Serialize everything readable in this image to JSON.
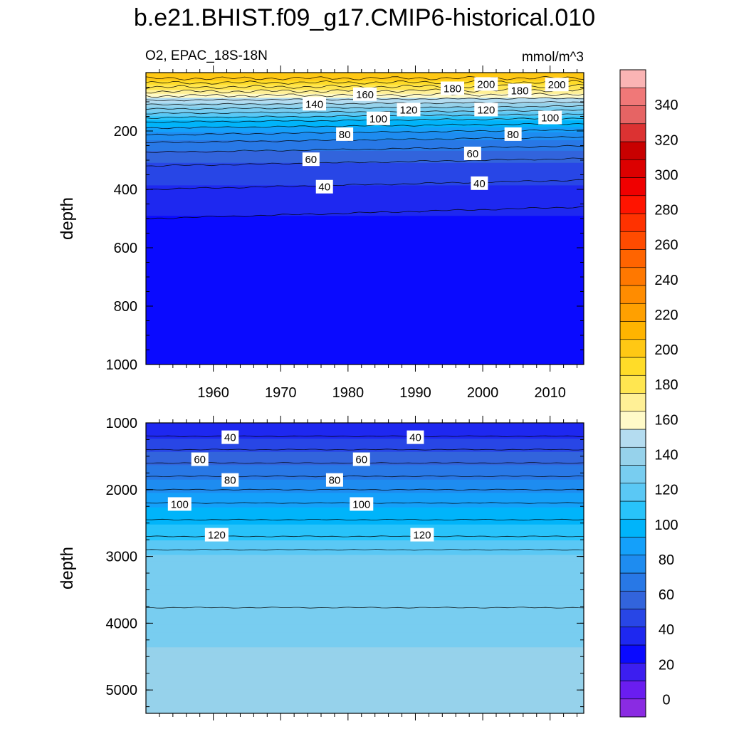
{
  "title": "b.e21.BHIST.f09_g17.CMIP6-historical.010",
  "variable_label": "O2, EPAC_18S-18N",
  "units_label": "mmol/m^3",
  "chart_data": [
    {
      "type": "heatmap",
      "panel": "upper",
      "ylabel": "depth",
      "y_reversed": true,
      "ylim": [
        0,
        1000
      ],
      "xlim": [
        1950,
        2015
      ],
      "x_ticks": [
        1960,
        1970,
        1980,
        1990,
        2000,
        2010
      ],
      "y_ticks": [
        200,
        400,
        600,
        800,
        1000
      ],
      "grid": false,
      "contour_levels": [
        0,
        10,
        20,
        30,
        40,
        50,
        60,
        70,
        80,
        90,
        100,
        110,
        120,
        130,
        140,
        150,
        160,
        170,
        180,
        190,
        200,
        210
      ],
      "contour_labels": [
        {
          "text": "200",
          "x": 2000.5,
          "y": 40
        },
        {
          "text": "200",
          "x": 2011,
          "y": 42
        },
        {
          "text": "180",
          "x": 1995.5,
          "y": 55
        },
        {
          "text": "180",
          "x": 2005.5,
          "y": 62
        },
        {
          "text": "160",
          "x": 1982.5,
          "y": 75
        },
        {
          "text": "140",
          "x": 1975,
          "y": 108
        },
        {
          "text": "120",
          "x": 1989,
          "y": 128
        },
        {
          "text": "120",
          "x": 2000.5,
          "y": 128
        },
        {
          "text": "100",
          "x": 1984.5,
          "y": 158
        },
        {
          "text": "100",
          "x": 2010,
          "y": 155
        },
        {
          "text": "80",
          "x": 1979.5,
          "y": 212
        },
        {
          "text": "80",
          "x": 2004.5,
          "y": 212
        },
        {
          "text": "60",
          "x": 1974.5,
          "y": 298
        },
        {
          "text": "60",
          "x": 1998.5,
          "y": 278
        },
        {
          "text": "40",
          "x": 1976.5,
          "y": 392
        },
        {
          "text": "40",
          "x": 1999.5,
          "y": 380
        }
      ],
      "profile": {
        "depth": [
          0,
          20,
          50,
          80,
          110,
          140,
          170,
          200,
          240,
          290,
          350,
          420,
          500,
          1000
        ],
        "o2": [
          205,
          200,
          180,
          160,
          140,
          120,
          100,
          85,
          70,
          55,
          45,
          38,
          30,
          22
        ]
      }
    },
    {
      "type": "heatmap",
      "panel": "lower",
      "ylabel": "depth",
      "y_reversed": true,
      "ylim": [
        1000,
        5350
      ],
      "xlim": [
        1950,
        2015
      ],
      "y_ticks": [
        1000,
        2000,
        3000,
        4000,
        5000
      ],
      "grid": false,
      "contour_levels": [
        30,
        40,
        50,
        60,
        70,
        80,
        90,
        100,
        110,
        120,
        130
      ],
      "contour_labels": [
        {
          "text": "40",
          "x": 1962.5,
          "y": 1220
        },
        {
          "text": "40",
          "x": 1990,
          "y": 1220
        },
        {
          "text": "60",
          "x": 1958,
          "y": 1550
        },
        {
          "text": "60",
          "x": 1982,
          "y": 1550
        },
        {
          "text": "80",
          "x": 1962.5,
          "y": 1860
        },
        {
          "text": "80",
          "x": 1978,
          "y": 1860
        },
        {
          "text": "100",
          "x": 1955,
          "y": 2220
        },
        {
          "text": "100",
          "x": 1982,
          "y": 2220
        },
        {
          "text": "120",
          "x": 1960.5,
          "y": 2680
        },
        {
          "text": "120",
          "x": 1991,
          "y": 2680
        }
      ],
      "profile": {
        "depth": [
          1000,
          1200,
          1400,
          1600,
          1800,
          2000,
          2200,
          2450,
          2700,
          3000,
          5300,
          5350
        ],
        "o2": [
          35,
          40,
          50,
          60,
          70,
          80,
          90,
          100,
          110,
          125,
          140,
          135
        ]
      }
    }
  ],
  "colorbar": {
    "min": -10,
    "max": 360,
    "labels": [
      "0",
      "20",
      "40",
      "60",
      "80",
      "100",
      "120",
      "140",
      "160",
      "180",
      "200",
      "220",
      "240",
      "260",
      "280",
      "300",
      "320",
      "340"
    ],
    "colors": [
      "#8a2be2",
      "#6a1df0",
      "#3c1ef0",
      "#0a0aff",
      "#1e28f0",
      "#2846e6",
      "#3264dc",
      "#2878e6",
      "#1e8cf0",
      "#14a0fa",
      "#00b4fa",
      "#28c3fa",
      "#5ac8f5",
      "#78cdf0",
      "#96d2eb",
      "#b4dcf0",
      "#fffac8",
      "#fff096",
      "#ffe650",
      "#ffdc28",
      "#ffc814",
      "#ffb400",
      "#ffa000",
      "#ff8c00",
      "#ff7800",
      "#ff6400",
      "#ff4b00",
      "#ff3200",
      "#ff1400",
      "#f00000",
      "#dc0000",
      "#c80000",
      "#dc3232",
      "#e66464",
      "#f07878",
      "#fab4b4"
    ]
  }
}
